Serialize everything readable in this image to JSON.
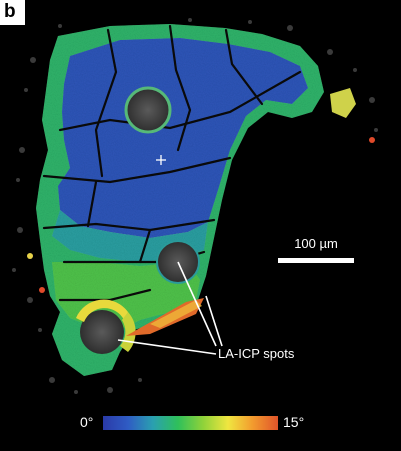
{
  "panel": {
    "letter": "b"
  },
  "scale_bar": {
    "label": "100 µm"
  },
  "annotation": {
    "label": "LA-ICP spots"
  },
  "colorbar": {
    "min_label": "0°",
    "max_label": "15°",
    "colors": [
      "#2a3aa8",
      "#2f5cc4",
      "#2aa0b0",
      "#2fc05a",
      "#8fd23a",
      "#f0e640",
      "#f29a2e",
      "#e0542a"
    ]
  }
}
